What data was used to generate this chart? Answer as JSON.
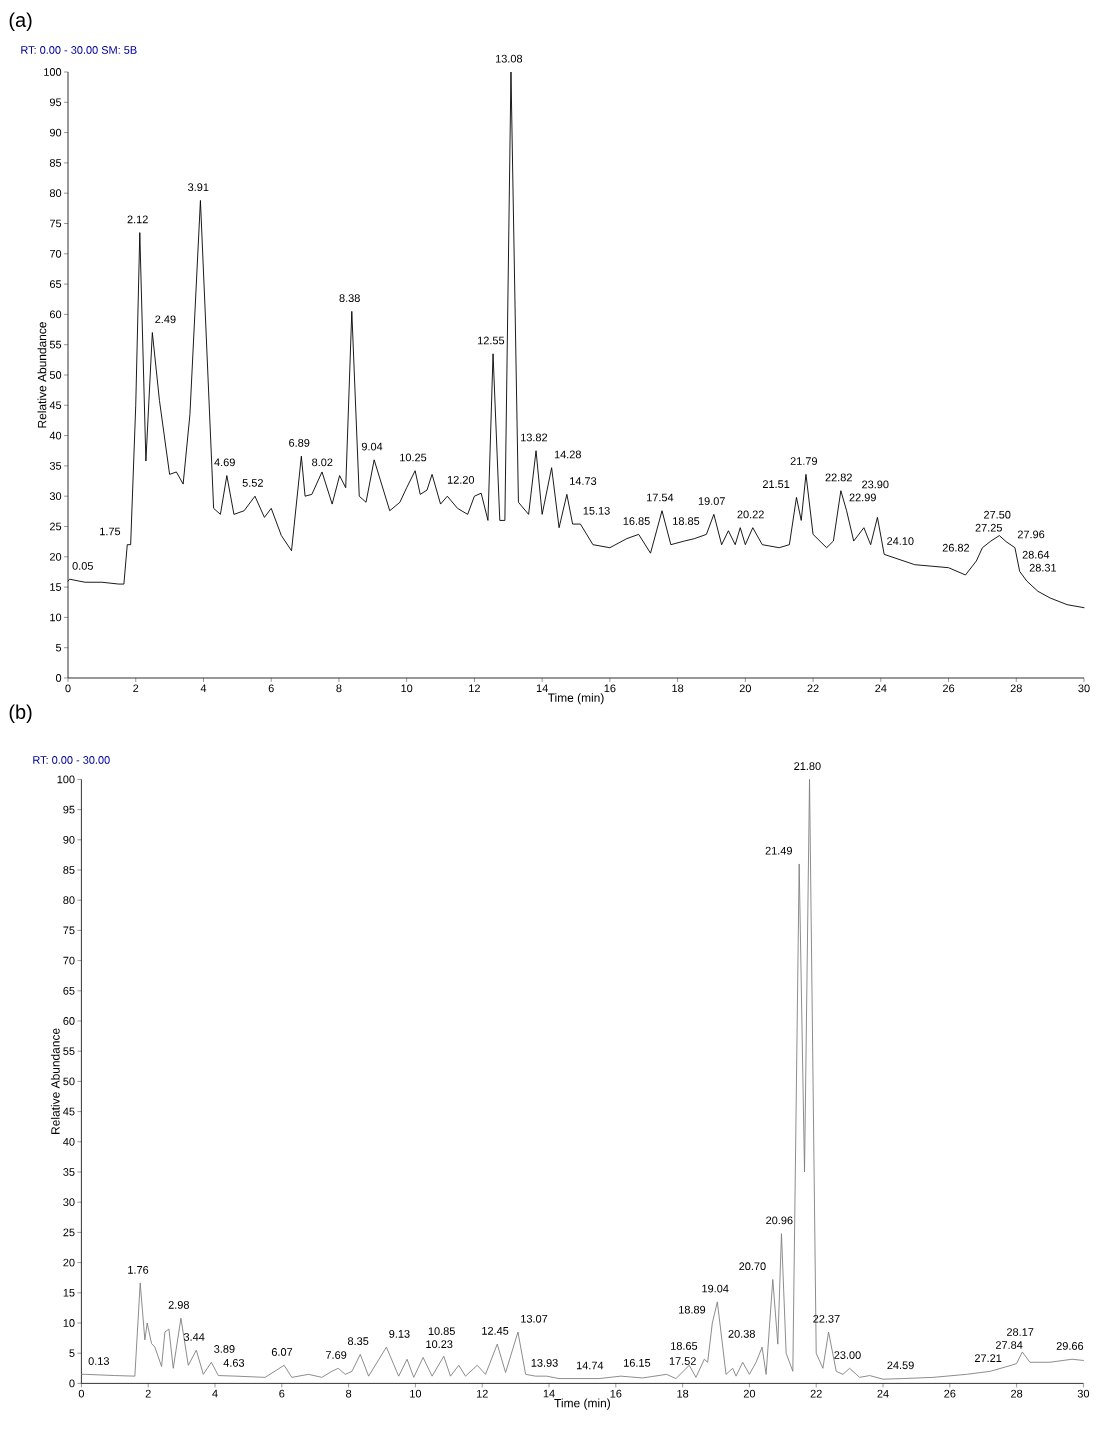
{
  "chart_data": [
    {
      "type": "line",
      "title": "(a)",
      "subtitle": "RT: 0.00 - 30.00 SM: 5B",
      "xlabel": "Time (min)",
      "ylabel": "Relative Abundance",
      "marker": "none",
      "line_style": "solid",
      "xlim": [
        0,
        30
      ],
      "ylim": [
        0,
        100
      ],
      "xticks": [
        0,
        2,
        4,
        6,
        8,
        10,
        12,
        14,
        16,
        18,
        20,
        22,
        24,
        26,
        28,
        30
      ],
      "yticks": [
        0,
        5,
        10,
        15,
        20,
        25,
        30,
        35,
        40,
        45,
        50,
        55,
        60,
        65,
        70,
        75,
        80,
        85,
        90,
        95,
        100
      ],
      "x": [
        0,
        0.05,
        0.5,
        1.0,
        1.5,
        1.65,
        1.75,
        1.85,
        2.0,
        2.12,
        2.3,
        2.49,
        2.7,
        3.0,
        3.2,
        3.4,
        3.6,
        3.91,
        4.3,
        4.5,
        4.69,
        4.9,
        5.2,
        5.52,
        5.8,
        6.0,
        6.3,
        6.6,
        6.89,
        7.0,
        7.2,
        7.5,
        7.8,
        8.02,
        8.2,
        8.38,
        8.6,
        8.8,
        9.04,
        9.5,
        9.8,
        10.0,
        10.25,
        10.4,
        10.6,
        10.75,
        11.0,
        11.2,
        11.5,
        11.8,
        12.0,
        12.2,
        12.4,
        12.55,
        12.75,
        12.9,
        13.08,
        13.3,
        13.6,
        13.82,
        14.0,
        14.28,
        14.5,
        14.73,
        14.9,
        15.13,
        15.5,
        16.0,
        16.5,
        16.85,
        17.2,
        17.54,
        17.8,
        18.2,
        18.5,
        18.85,
        19.07,
        19.3,
        19.5,
        19.7,
        19.85,
        20.0,
        20.22,
        20.5,
        21.0,
        21.3,
        21.51,
        21.65,
        21.79,
        22.0,
        22.4,
        22.6,
        22.82,
        22.99,
        23.2,
        23.5,
        23.7,
        23.9,
        24.1,
        25.0,
        26.0,
        26.5,
        26.82,
        27.0,
        27.25,
        27.5,
        27.7,
        27.96,
        28.1,
        28.31,
        28.64,
        29.0,
        29.5,
        30
      ],
      "series": [
        {
          "color": "#000000",
          "values": [
            16,
            16.3,
            15.8,
            15.8,
            15.5,
            15.5,
            22,
            22,
            45,
            73.5,
            35.8,
            57,
            45.8,
            33.6,
            34,
            32,
            43.5,
            78.8,
            28,
            27,
            33.4,
            27,
            27.6,
            30,
            26.5,
            28,
            23.5,
            21,
            36.6,
            30,
            30.3,
            34,
            28.7,
            33.4,
            31.4,
            60.5,
            30,
            29,
            36,
            27.6,
            29,
            31.4,
            34.2,
            30.3,
            31,
            33.6,
            28.7,
            30,
            28,
            27,
            30,
            30.5,
            26,
            53.5,
            26,
            26,
            100,
            29,
            27,
            37.5,
            27,
            34.7,
            24.8,
            30.3,
            25.4,
            25.4,
            22,
            21.5,
            23,
            23.7,
            20.6,
            27.6,
            22,
            22.6,
            23,
            23.7,
            27,
            22,
            24.3,
            22,
            24.8,
            22,
            24.8,
            22,
            21.5,
            22,
            29.8,
            26,
            33.6,
            23.7,
            21.5,
            22.6,
            30.9,
            27.6,
            22.6,
            24.8,
            22,
            26.5,
            20.4,
            18.7,
            18.2,
            17,
            19.3,
            21.5,
            22.6,
            23.5,
            22.5,
            21.5,
            17.6,
            16,
            14.3,
            13.2,
            12.1,
            11.6
          ]
        }
      ],
      "annotations": [
        {
          "text": "0.05",
          "x": 0.05,
          "y": 16.3
        },
        {
          "text": "1.75",
          "x": 1.75,
          "y": 22
        },
        {
          "text": "2.12",
          "x": 2.12,
          "y": 73.5
        },
        {
          "text": "2.49",
          "x": 2.49,
          "y": 57
        },
        {
          "text": "3.91",
          "x": 3.91,
          "y": 78.8
        },
        {
          "text": "4.69",
          "x": 4.69,
          "y": 33.4
        },
        {
          "text": "5.52",
          "x": 5.52,
          "y": 30
        },
        {
          "text": "6.89",
          "x": 6.89,
          "y": 36.6
        },
        {
          "text": "8.02",
          "x": 8.02,
          "y": 33.4
        },
        {
          "text": "8.38",
          "x": 8.38,
          "y": 60.5
        },
        {
          "text": "9.04",
          "x": 9.04,
          "y": 36
        },
        {
          "text": "10.25",
          "x": 10.25,
          "y": 34.2
        },
        {
          "text": "12.20",
          "x": 12.2,
          "y": 30.5
        },
        {
          "text": "12.55",
          "x": 12.55,
          "y": 53.5
        },
        {
          "text": "13.08",
          "x": 13.08,
          "y": 100
        },
        {
          "text": "13.82",
          "x": 13.82,
          "y": 37.5
        },
        {
          "text": "14.28",
          "x": 14.28,
          "y": 34.7
        },
        {
          "text": "14.73",
          "x": 14.73,
          "y": 30.3
        },
        {
          "text": "15.13",
          "x": 15.13,
          "y": 25.4
        },
        {
          "text": "16.85",
          "x": 16.85,
          "y": 23.7
        },
        {
          "text": "17.54",
          "x": 17.54,
          "y": 27.6
        },
        {
          "text": "18.85",
          "x": 18.85,
          "y": 23.7
        },
        {
          "text": "19.07",
          "x": 19.07,
          "y": 27
        },
        {
          "text": "20.22",
          "x": 20.22,
          "y": 24.8
        },
        {
          "text": "21.51",
          "x": 21.51,
          "y": 29.8
        },
        {
          "text": "21.79",
          "x": 21.79,
          "y": 33.6
        },
        {
          "text": "22.82",
          "x": 22.82,
          "y": 30.9
        },
        {
          "text": "22.99",
          "x": 22.99,
          "y": 27.6
        },
        {
          "text": "23.90",
          "x": 23.9,
          "y": 26.5
        },
        {
          "text": "24.10",
          "x": 24.1,
          "y": 20.4
        },
        {
          "text": "26.82",
          "x": 26.82,
          "y": 19.3
        },
        {
          "text": "27.25",
          "x": 27.25,
          "y": 22.6
        },
        {
          "text": "27.50",
          "x": 27.5,
          "y": 23.5
        },
        {
          "text": "27.96",
          "x": 27.96,
          "y": 21.5
        },
        {
          "text": "28.31",
          "x": 28.31,
          "y": 16
        },
        {
          "text": "28.64",
          "x": 28.64,
          "y": 14.3
        }
      ]
    },
    {
      "type": "line",
      "title": "(b)",
      "subtitle": "RT: 0.00 - 30.00",
      "xlabel": "Time (min)",
      "ylabel": "Relative Abundance",
      "marker": "none",
      "line_style": "solid",
      "xlim": [
        0,
        30
      ],
      "ylim": [
        0,
        100
      ],
      "xticks": [
        0,
        2,
        4,
        6,
        8,
        10,
        12,
        14,
        16,
        18,
        20,
        22,
        24,
        26,
        28,
        30
      ],
      "yticks": [
        0,
        5,
        10,
        15,
        20,
        25,
        30,
        35,
        40,
        45,
        50,
        55,
        60,
        65,
        70,
        75,
        80,
        85,
        90,
        95,
        100
      ],
      "x": [
        0,
        0.13,
        1.0,
        1.6,
        1.76,
        1.9,
        1.97,
        2.1,
        2.2,
        2.4,
        2.5,
        2.62,
        2.75,
        2.98,
        3.2,
        3.44,
        3.65,
        3.89,
        4.1,
        4.63,
        5.5,
        6.07,
        6.3,
        6.8,
        7.2,
        7.5,
        7.69,
        7.9,
        8.1,
        8.35,
        8.6,
        9.13,
        9.5,
        9.75,
        9.95,
        10.23,
        10.5,
        10.85,
        11.05,
        11.3,
        11.5,
        11.85,
        12.1,
        12.45,
        12.7,
        13.07,
        13.3,
        13.6,
        13.93,
        14.3,
        14.74,
        15.5,
        16.15,
        16.8,
        17.52,
        17.8,
        18.2,
        18.4,
        18.65,
        18.75,
        18.89,
        19.04,
        19.3,
        19.5,
        19.6,
        19.8,
        20.0,
        20.2,
        20.38,
        20.5,
        20.7,
        20.85,
        20.96,
        21.1,
        21.3,
        21.49,
        21.65,
        21.8,
        22.0,
        22.2,
        22.37,
        22.6,
        22.8,
        23.0,
        23.3,
        23.6,
        24.0,
        24.59,
        25.5,
        26.5,
        27.21,
        27.84,
        28.0,
        28.17,
        28.4,
        29.0,
        29.66,
        30
      ],
      "series": [
        {
          "color": "#7f7f7f",
          "values": [
            1.5,
            1.5,
            1.3,
            1.2,
            16.6,
            7.2,
            10,
            6.6,
            6,
            2.8,
            8.5,
            9,
            2.5,
            10.8,
            3,
            5.5,
            1.5,
            3.5,
            1.3,
            1.2,
            1.0,
            3.0,
            1.0,
            1.5,
            1.0,
            2.0,
            2.5,
            1.5,
            2,
            4.8,
            1.2,
            6,
            1.2,
            4,
            1,
            4.3,
            1.2,
            4.5,
            1.2,
            3,
            1.2,
            3,
            1.5,
            6.5,
            1.8,
            8.5,
            1.5,
            1.2,
            1.2,
            0.8,
            0.8,
            0.8,
            1.2,
            0.9,
            1.5,
            0.8,
            3,
            1,
            4,
            3.5,
            10,
            13.5,
            1.5,
            2.5,
            1.2,
            3.5,
            1.5,
            3.5,
            6,
            1.5,
            17.2,
            6.5,
            24.8,
            5,
            2,
            86,
            35,
            100,
            5,
            2.5,
            8.5,
            2,
            1.5,
            2.5,
            1,
            1.3,
            0.7,
            0.8,
            1,
            1.5,
            2,
            3,
            3.3,
            5.2,
            3.5,
            3.5,
            4,
            3.8
          ]
        }
      ],
      "annotations": [
        {
          "text": "0.13",
          "x": 0.13,
          "y": 1.5
        },
        {
          "text": "1.76",
          "x": 1.76,
          "y": 16.6
        },
        {
          "text": "2.98",
          "x": 2.98,
          "y": 10.8
        },
        {
          "text": "3.44",
          "x": 3.44,
          "y": 5.5
        },
        {
          "text": "3.89",
          "x": 3.89,
          "y": 3.5
        },
        {
          "text": "4.63",
          "x": 4.63,
          "y": 1.2
        },
        {
          "text": "6.07",
          "x": 6.07,
          "y": 3
        },
        {
          "text": "7.69",
          "x": 7.69,
          "y": 2.5
        },
        {
          "text": "8.35",
          "x": 8.35,
          "y": 4.8
        },
        {
          "text": "9.13",
          "x": 9.13,
          "y": 6
        },
        {
          "text": "10.23",
          "x": 10.23,
          "y": 4.3
        },
        {
          "text": "10.85",
          "x": 10.85,
          "y": 4.5
        },
        {
          "text": "12.45",
          "x": 12.45,
          "y": 6.5
        },
        {
          "text": "13.07",
          "x": 13.07,
          "y": 8.5
        },
        {
          "text": "13.93",
          "x": 13.93,
          "y": 1.2
        },
        {
          "text": "14.74",
          "x": 14.74,
          "y": 0.8
        },
        {
          "text": "16.15",
          "x": 16.15,
          "y": 1.2
        },
        {
          "text": "17.52",
          "x": 17.52,
          "y": 1.5
        },
        {
          "text": "18.65",
          "x": 18.65,
          "y": 4
        },
        {
          "text": "18.89",
          "x": 18.89,
          "y": 10
        },
        {
          "text": "19.04",
          "x": 19.04,
          "y": 13.5
        },
        {
          "text": "20.38",
          "x": 20.38,
          "y": 6
        },
        {
          "text": "20.70",
          "x": 20.7,
          "y": 17.2
        },
        {
          "text": "20.96",
          "x": 20.96,
          "y": 24.8
        },
        {
          "text": "21.49",
          "x": 21.49,
          "y": 86
        },
        {
          "text": "21.80",
          "x": 21.8,
          "y": 100
        },
        {
          "text": "22.37",
          "x": 22.37,
          "y": 8.5
        },
        {
          "text": "23.00",
          "x": 23.0,
          "y": 2.5
        },
        {
          "text": "24.59",
          "x": 24.59,
          "y": 0.8
        },
        {
          "text": "27.21",
          "x": 27.21,
          "y": 2
        },
        {
          "text": "27.84",
          "x": 27.84,
          "y": 3
        },
        {
          "text": "28.17",
          "x": 28.17,
          "y": 5.2
        },
        {
          "text": "29.66",
          "x": 29.66,
          "y": 4
        }
      ]
    }
  ]
}
